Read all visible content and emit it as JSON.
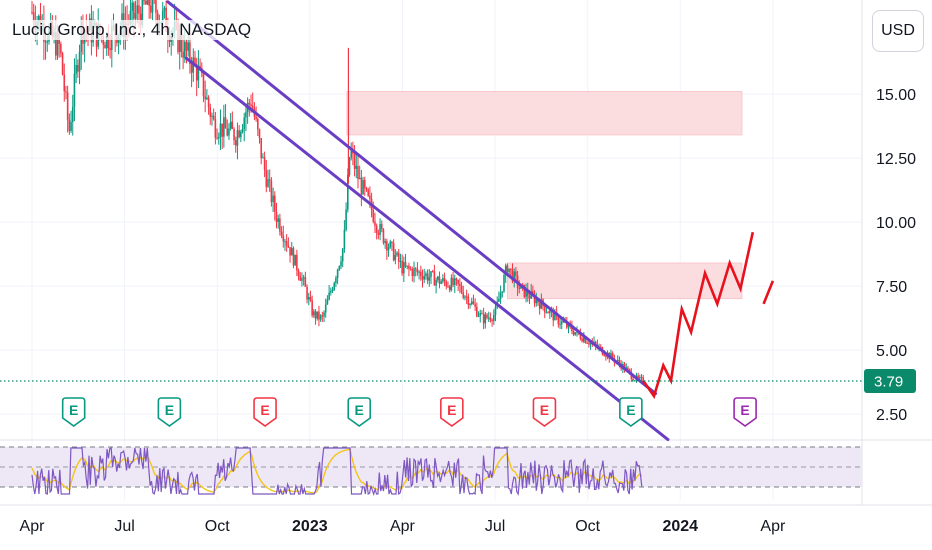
{
  "header": {
    "title": "Lucid Group, Inc., 4h, NASDAQ",
    "currency_button": "USD"
  },
  "price_badge": {
    "value": "3.79",
    "color": "#0a8a6a"
  },
  "colors": {
    "up": "#089981",
    "down": "#f23645",
    "channel": "#6a3ec4",
    "projection": "#e8121e",
    "zone": "#fbdde0",
    "rsi_line": "#7e57c2",
    "rsi_ma": "#f5c518",
    "rsi_band": "#ede7f6",
    "earn_green": "#089981",
    "earn_red": "#f23645",
    "earn_purple": "#9c27b0"
  },
  "chart_data": {
    "type": "candlestick",
    "title": "Lucid Group, Inc., 4h, NASDAQ",
    "x_ticks": [
      {
        "label": "Apr",
        "t": 0.0,
        "bold": false
      },
      {
        "label": "Jul",
        "t": 3.0,
        "bold": false
      },
      {
        "label": "Oct",
        "t": 6.0,
        "bold": false
      },
      {
        "label": "2023",
        "t": 9.0,
        "bold": true
      },
      {
        "label": "Apr",
        "t": 12.0,
        "bold": false
      },
      {
        "label": "Jul",
        "t": 15.0,
        "bold": false
      },
      {
        "label": "Oct",
        "t": 18.0,
        "bold": false
      },
      {
        "label": "2024",
        "t": 21.0,
        "bold": true
      },
      {
        "label": "Apr",
        "t": 24.0,
        "bold": false
      }
    ],
    "y_ticks": [
      "15.00",
      "12.50",
      "10.00",
      "7.50",
      "5.00",
      "2.50"
    ],
    "y_tick_values": [
      15.0,
      12.5,
      10.0,
      7.5,
      5.0,
      2.5
    ],
    "y_range": [
      1.5,
      18.5
    ],
    "price_path": [
      {
        "t": 0.0,
        "p": 18.2
      },
      {
        "t": 0.9,
        "p": 16.8
      },
      {
        "t": 1.2,
        "p": 13.5
      },
      {
        "t": 1.6,
        "p": 17.6
      },
      {
        "t": 2.4,
        "p": 17.2
      },
      {
        "t": 3.2,
        "p": 17.9
      },
      {
        "t": 3.8,
        "p": 18.6
      },
      {
        "t": 4.6,
        "p": 17.4
      },
      {
        "t": 5.4,
        "p": 15.8
      },
      {
        "t": 5.9,
        "p": 13.8
      },
      {
        "t": 6.6,
        "p": 13.4
      },
      {
        "t": 7.1,
        "p": 14.8
      },
      {
        "t": 7.5,
        "p": 12.2
      },
      {
        "t": 7.9,
        "p": 10.3
      },
      {
        "t": 8.4,
        "p": 8.8
      },
      {
        "t": 8.8,
        "p": 7.6
      },
      {
        "t": 9.1,
        "p": 6.4
      },
      {
        "t": 9.4,
        "p": 6.2
      },
      {
        "t": 9.8,
        "p": 7.8
      },
      {
        "t": 10.1,
        "p": 9.1
      },
      {
        "t": 10.3,
        "p": 12.8
      },
      {
        "t": 10.6,
        "p": 11.6
      },
      {
        "t": 11.0,
        "p": 10.5
      },
      {
        "t": 11.2,
        "p": 9.8
      },
      {
        "t": 11.5,
        "p": 9.2
      },
      {
        "t": 12.0,
        "p": 8.2
      },
      {
        "t": 12.6,
        "p": 8.0
      },
      {
        "t": 13.2,
        "p": 7.7
      },
      {
        "t": 13.8,
        "p": 7.5
      },
      {
        "t": 14.2,
        "p": 6.9
      },
      {
        "t": 14.6,
        "p": 6.2
      },
      {
        "t": 15.0,
        "p": 6.4
      },
      {
        "t": 15.4,
        "p": 8.3
      },
      {
        "t": 15.8,
        "p": 7.4
      },
      {
        "t": 16.4,
        "p": 6.9
      },
      {
        "t": 17.0,
        "p": 6.2
      },
      {
        "t": 17.6,
        "p": 5.7
      },
      {
        "t": 18.2,
        "p": 5.2
      },
      {
        "t": 18.8,
        "p": 4.7
      },
      {
        "t": 19.2,
        "p": 4.3
      },
      {
        "t": 19.5,
        "p": 3.9
      },
      {
        "t": 19.8,
        "p": 3.79
      }
    ],
    "spike": {
      "t": 10.25,
      "high": 16.8
    },
    "channel_lines": [
      {
        "name": "channel-upper",
        "from": {
          "t": 4.4,
          "p": 18.6
        },
        "to": {
          "t": 20.2,
          "p": 3.3
        }
      },
      {
        "name": "channel-lower",
        "from": {
          "t": 5.0,
          "p": 16.4
        },
        "to": {
          "t": 20.6,
          "p": 1.5
        }
      }
    ],
    "resistance_zones": [
      {
        "t_from": 10.2,
        "t_to": 23.0,
        "low": 13.4,
        "high": 15.1
      },
      {
        "t_from": 15.4,
        "t_to": 23.0,
        "low": 7.0,
        "high": 8.4
      }
    ],
    "projection": [
      {
        "t": 19.8,
        "p": 3.8
      },
      {
        "t": 20.15,
        "p": 3.2
      },
      {
        "t": 20.45,
        "p": 4.4
      },
      {
        "t": 20.7,
        "p": 3.8
      },
      {
        "t": 21.05,
        "p": 6.6
      },
      {
        "t": 21.35,
        "p": 5.7
      },
      {
        "t": 21.8,
        "p": 8.0
      },
      {
        "t": 22.2,
        "p": 6.8
      },
      {
        "t": 22.6,
        "p": 8.4
      },
      {
        "t": 22.95,
        "p": 7.4
      },
      {
        "t": 23.35,
        "p": 9.6
      },
      {
        "t": 23.7,
        "p": 6.8
      },
      {
        "t": 24.0,
        "p": 7.7
      }
    ],
    "projection_gap": [
      {
        "from_index": 10,
        "to_index": 10
      }
    ],
    "last_price": 3.79,
    "earnings": [
      {
        "t": 1.35,
        "kind": "green"
      },
      {
        "t": 4.45,
        "kind": "green"
      },
      {
        "t": 7.55,
        "kind": "red"
      },
      {
        "t": 10.6,
        "kind": "green"
      },
      {
        "t": 13.6,
        "kind": "red"
      },
      {
        "t": 16.6,
        "kind": "red"
      },
      {
        "t": 19.4,
        "kind": "green"
      },
      {
        "t": 23.1,
        "kind": "purple"
      }
    ],
    "earnings_label": "E",
    "rsi": {
      "upper": 70,
      "mid": 50,
      "lower": 30
    }
  }
}
